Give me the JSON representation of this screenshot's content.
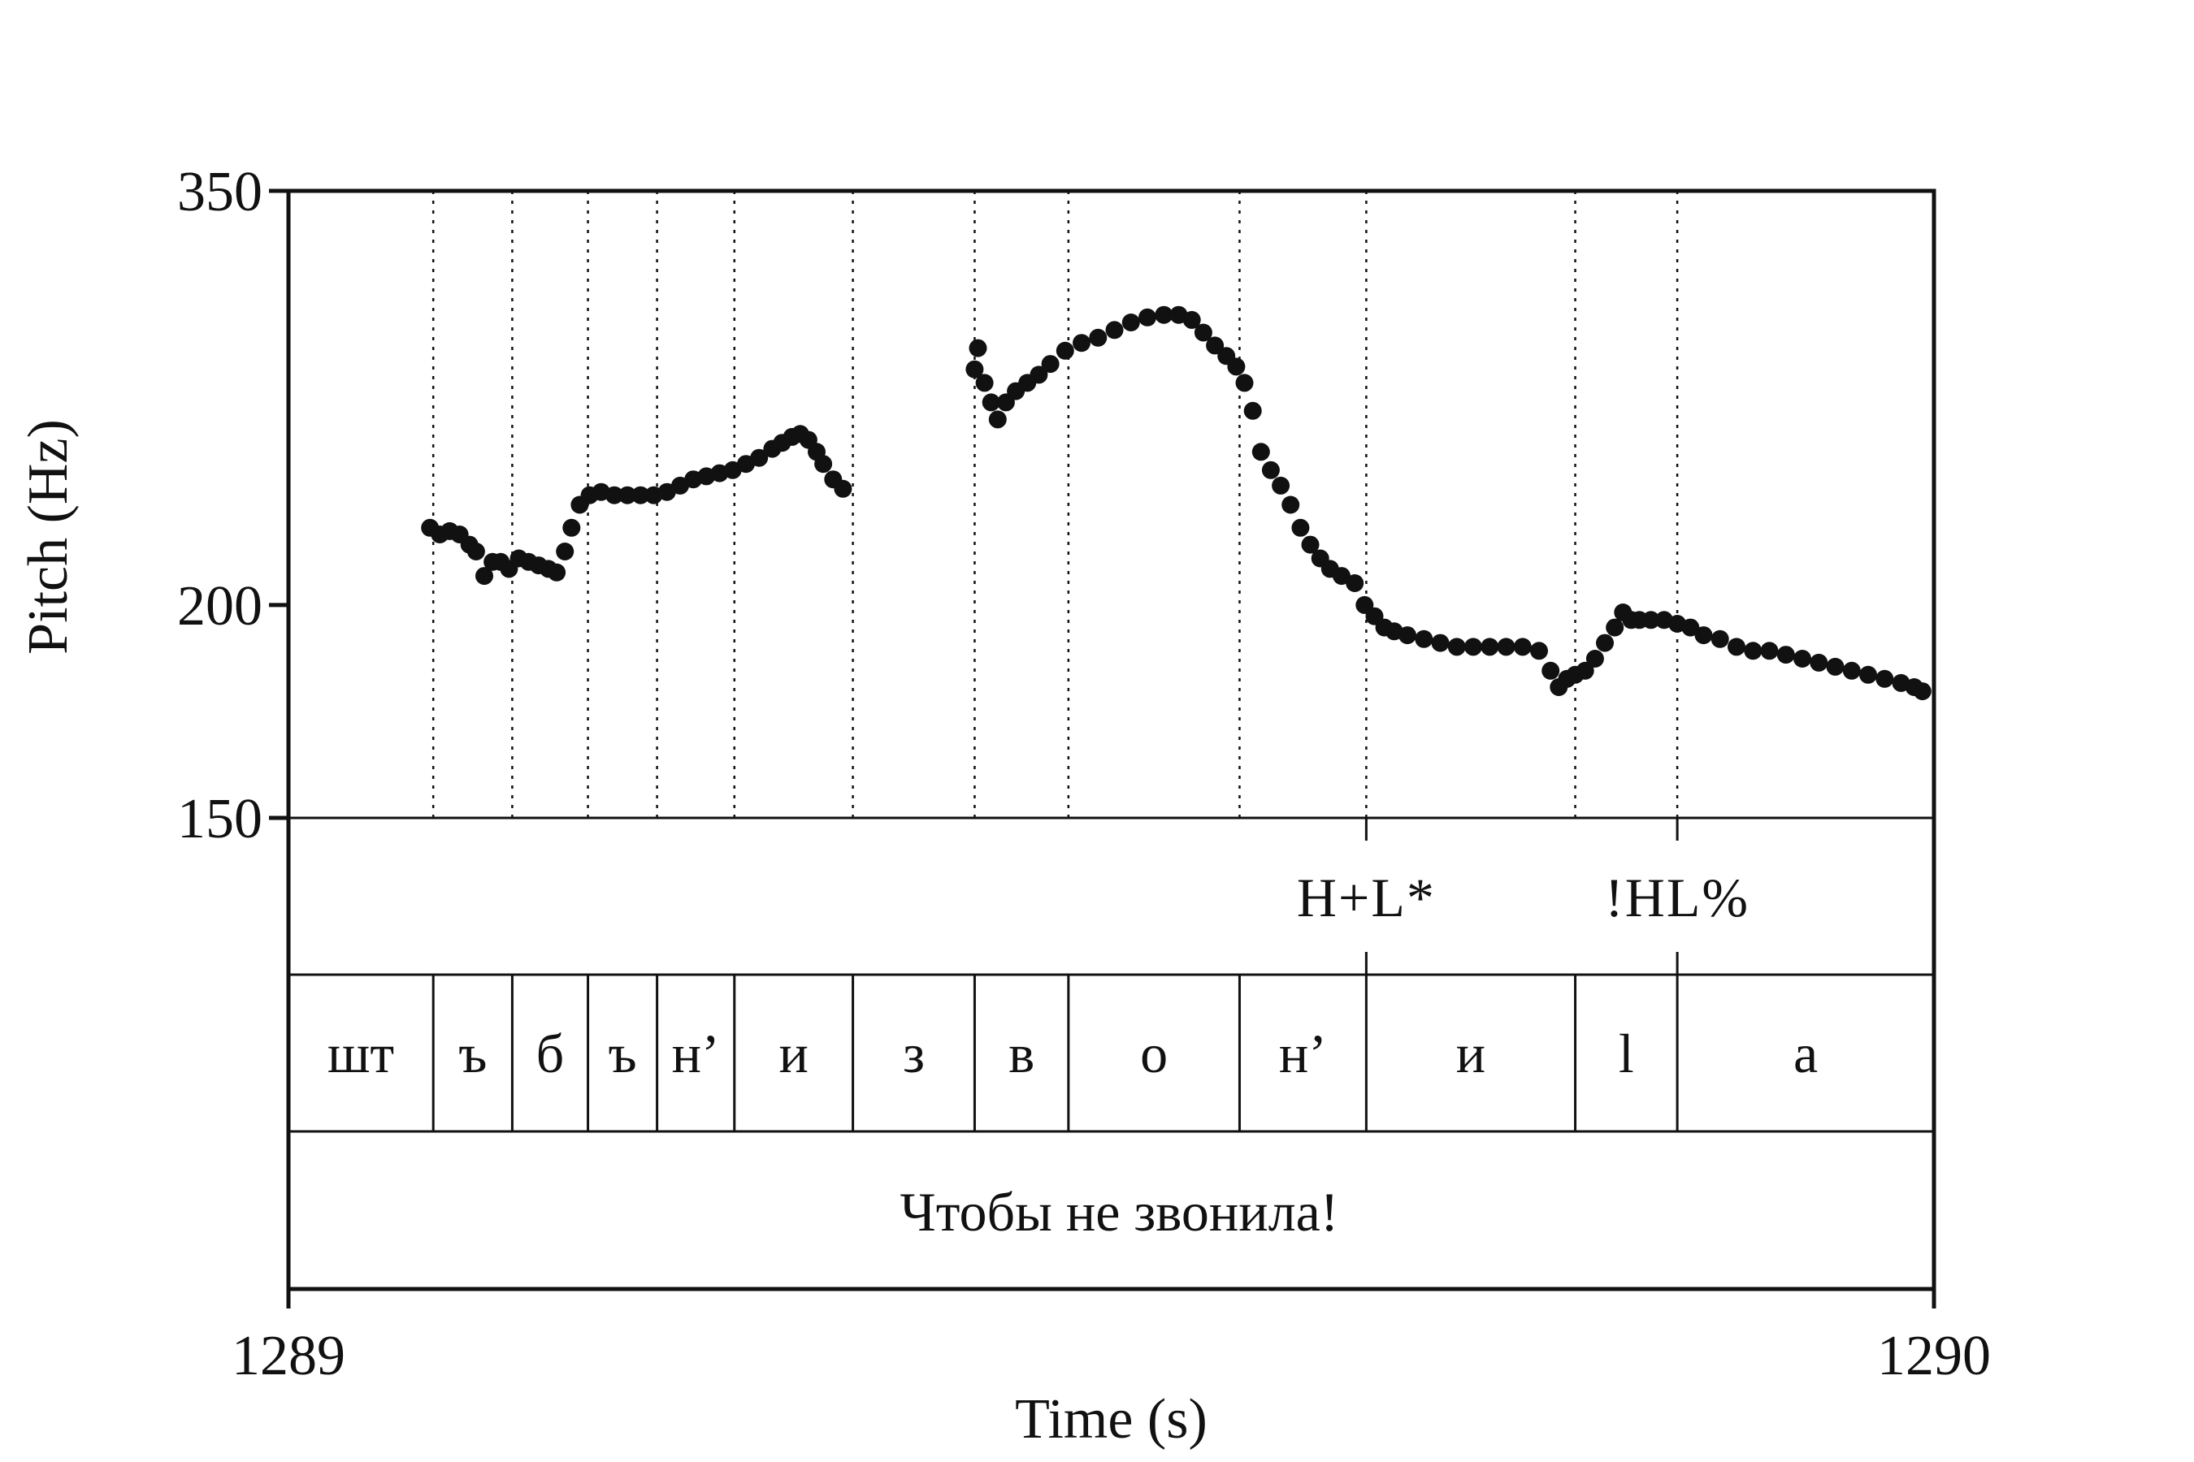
{
  "chart_data": {
    "type": "scatter",
    "xlabel": "Time (s)",
    "ylabel": "Pitch (Hz)",
    "xlim": [
      1289,
      1290
    ],
    "ylim": [
      150,
      350
    ],
    "y_ticks": [
      "350",
      "200",
      "150"
    ],
    "x_ticks": [
      "1289",
      "1290"
    ],
    "y_tick_values": [
      350,
      200,
      150
    ],
    "x_tick_values": [
      1289,
      1290
    ],
    "y_scale": "log",
    "grid": false,
    "legend": "none",
    "point_color": "#111111",
    "segment_boundaries": [
      1289.088,
      1289.136,
      1289.182,
      1289.224,
      1289.271,
      1289.343,
      1289.417,
      1289.474,
      1289.578,
      1289.655,
      1289.782,
      1289.844
    ],
    "tone_boundaries": [
      1289.655,
      1289.844
    ],
    "tones": [
      {
        "label": "H+L*",
        "t": 1289.655
      },
      {
        "label": "!HL%",
        "t": 1289.844
      }
    ],
    "segments": [
      {
        "label": "шт",
        "start": 1289.0,
        "end": 1289.088
      },
      {
        "label": "ъ",
        "start": 1289.088,
        "end": 1289.136
      },
      {
        "label": "б",
        "start": 1289.136,
        "end": 1289.182
      },
      {
        "label": "ъ",
        "start": 1289.182,
        "end": 1289.224
      },
      {
        "label": "н’",
        "start": 1289.224,
        "end": 1289.271
      },
      {
        "label": "и",
        "start": 1289.271,
        "end": 1289.343
      },
      {
        "label": "з",
        "start": 1289.343,
        "end": 1289.417
      },
      {
        "label": "в",
        "start": 1289.417,
        "end": 1289.474
      },
      {
        "label": "о",
        "start": 1289.474,
        "end": 1289.578
      },
      {
        "label": "н’",
        "start": 1289.578,
        "end": 1289.655
      },
      {
        "label": "и",
        "start": 1289.655,
        "end": 1289.782
      },
      {
        "label": "l",
        "start": 1289.782,
        "end": 1289.844
      },
      {
        "label": "а",
        "start": 1289.844,
        "end": 1290.0
      }
    ],
    "phrase": "Чтобы не звонила!",
    "series": [
      {
        "points": [
          [
            1289.086,
            222
          ],
          [
            1289.092,
            220
          ],
          [
            1289.098,
            221
          ],
          [
            1289.104,
            220
          ],
          [
            1289.11,
            217
          ],
          [
            1289.114,
            215
          ],
          [
            1289.119,
            208
          ],
          [
            1289.124,
            212
          ],
          [
            1289.129,
            212
          ],
          [
            1289.134,
            210
          ],
          [
            1289.14,
            213
          ],
          [
            1289.146,
            212
          ],
          [
            1289.152,
            211
          ],
          [
            1289.158,
            210
          ],
          [
            1289.163,
            209
          ],
          [
            1289.168,
            215
          ],
          [
            1289.172,
            222
          ],
          [
            1289.177,
            229
          ],
          [
            1289.183,
            232
          ],
          [
            1289.19,
            233
          ],
          [
            1289.198,
            232
          ],
          [
            1289.206,
            232
          ],
          [
            1289.214,
            232
          ],
          [
            1289.222,
            232
          ],
          [
            1289.23,
            233
          ],
          [
            1289.238,
            235
          ],
          [
            1289.246,
            237
          ],
          [
            1289.254,
            238
          ],
          [
            1289.262,
            239
          ],
          [
            1289.27,
            240
          ],
          [
            1289.278,
            242
          ],
          [
            1289.286,
            244
          ],
          [
            1289.294,
            247
          ],
          [
            1289.3,
            249
          ],
          [
            1289.306,
            251
          ],
          [
            1289.311,
            252
          ],
          [
            1289.316,
            250
          ],
          [
            1289.321,
            246
          ],
          [
            1289.325,
            242
          ],
          [
            1289.331,
            237
          ],
          [
            1289.337,
            234
          ],
          [
            1289.417,
            275
          ],
          [
            1289.419,
            283
          ],
          [
            1289.423,
            270
          ],
          [
            1289.427,
            263
          ],
          [
            1289.431,
            257
          ],
          [
            1289.436,
            263
          ],
          [
            1289.442,
            267
          ],
          [
            1289.449,
            270
          ],
          [
            1289.456,
            273
          ],
          [
            1289.463,
            277
          ],
          [
            1289.472,
            282
          ],
          [
            1289.482,
            285
          ],
          [
            1289.492,
            287
          ],
          [
            1289.502,
            290
          ],
          [
            1289.512,
            293
          ],
          [
            1289.522,
            295
          ],
          [
            1289.532,
            296
          ],
          [
            1289.541,
            296
          ],
          [
            1289.549,
            294
          ],
          [
            1289.556,
            289
          ],
          [
            1289.563,
            284
          ],
          [
            1289.57,
            280
          ],
          [
            1289.576,
            276
          ],
          [
            1289.581,
            270
          ],
          [
            1289.586,
            260
          ],
          [
            1289.591,
            246
          ],
          [
            1289.597,
            240
          ],
          [
            1289.603,
            235
          ],
          [
            1289.609,
            229
          ],
          [
            1289.615,
            222
          ],
          [
            1289.621,
            217
          ],
          [
            1289.627,
            213
          ],
          [
            1289.633,
            210
          ],
          [
            1289.64,
            208
          ],
          [
            1289.648,
            206
          ],
          [
            1289.654,
            200
          ],
          [
            1289.66,
            197
          ],
          [
            1289.666,
            194
          ],
          [
            1289.672,
            193
          ],
          [
            1289.68,
            192
          ],
          [
            1289.69,
            191
          ],
          [
            1289.7,
            190
          ],
          [
            1289.71,
            189
          ],
          [
            1289.72,
            189
          ],
          [
            1289.73,
            189
          ],
          [
            1289.74,
            189
          ],
          [
            1289.75,
            189
          ],
          [
            1289.76,
            188
          ],
          [
            1289.767,
            183
          ],
          [
            1289.772,
            179
          ],
          [
            1289.777,
            181
          ],
          [
            1289.782,
            182
          ],
          [
            1289.788,
            183
          ],
          [
            1289.794,
            186
          ],
          [
            1289.8,
            190
          ],
          [
            1289.806,
            194
          ],
          [
            1289.811,
            198
          ],
          [
            1289.816,
            196
          ],
          [
            1289.821,
            196
          ],
          [
            1289.828,
            196
          ],
          [
            1289.836,
            196
          ],
          [
            1289.844,
            195
          ],
          [
            1289.852,
            194
          ],
          [
            1289.86,
            192
          ],
          [
            1289.87,
            191
          ],
          [
            1289.88,
            189
          ],
          [
            1289.89,
            188
          ],
          [
            1289.9,
            188
          ],
          [
            1289.91,
            187
          ],
          [
            1289.92,
            186
          ],
          [
            1289.93,
            185
          ],
          [
            1289.94,
            184
          ],
          [
            1289.95,
            183
          ],
          [
            1289.96,
            182
          ],
          [
            1289.97,
            181
          ],
          [
            1289.98,
            180
          ],
          [
            1289.988,
            179
          ],
          [
            1289.993,
            178
          ]
        ]
      }
    ]
  }
}
